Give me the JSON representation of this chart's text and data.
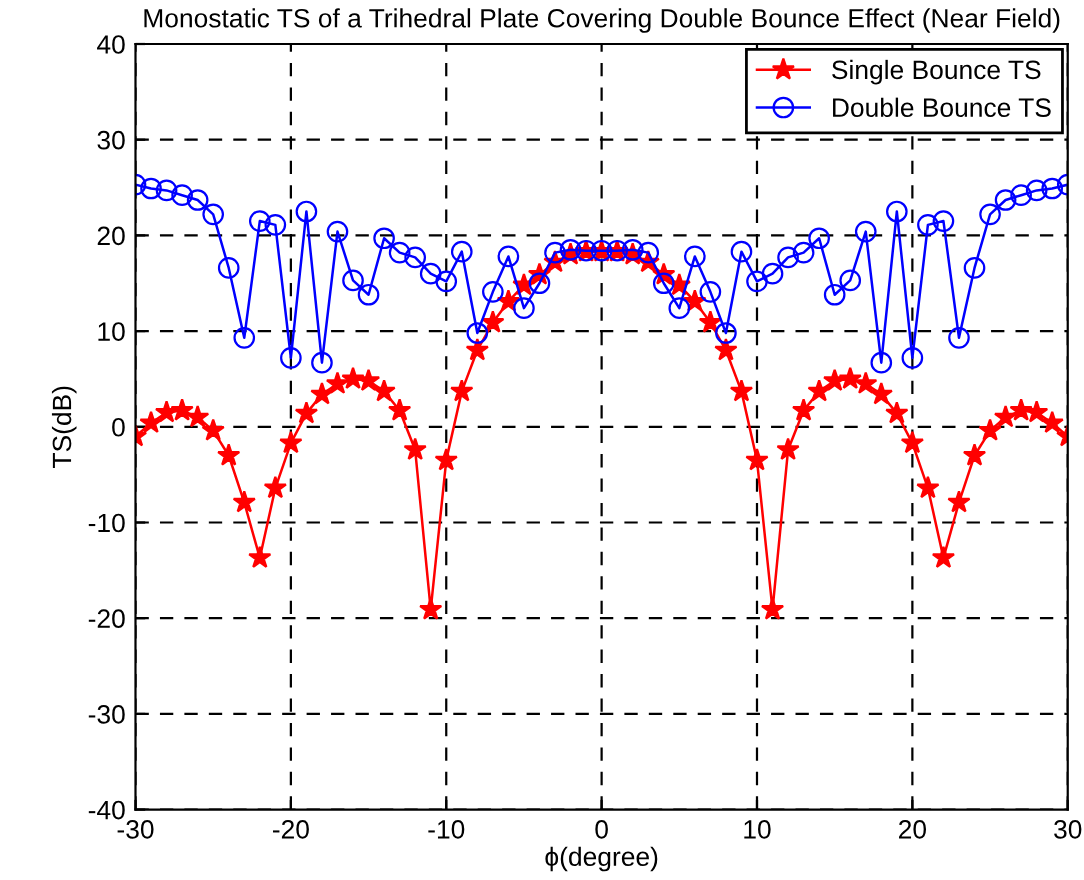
{
  "chart_data": {
    "type": "line",
    "title": "Monostatic TS of a Trihedral Plate Covering Double Bounce Effect (Near Field)",
    "xlabel": "ϕ(degree)",
    "ylabel": "TS(dB)",
    "x": [
      -30,
      -29,
      -28,
      -27,
      -26,
      -25,
      -24,
      -23,
      -22,
      -21,
      -20,
      -19,
      -18,
      -17,
      -16,
      -15,
      -14,
      -13,
      -12,
      -11,
      -10,
      -9,
      -8,
      -7,
      -6,
      -5,
      -4,
      -3,
      -2,
      -1,
      0,
      1,
      2,
      3,
      4,
      5,
      6,
      7,
      8,
      9,
      10,
      11,
      12,
      13,
      14,
      15,
      16,
      17,
      18,
      19,
      20,
      21,
      22,
      23,
      24,
      25,
      26,
      27,
      28,
      29,
      30
    ],
    "series": [
      {
        "name": "Single Bounce TS",
        "color": "#ff0000",
        "marker": "star",
        "values": [
          -1.0,
          0.4,
          1.5,
          1.7,
          1.0,
          -0.4,
          -3.0,
          -7.9,
          -13.7,
          -6.4,
          -1.7,
          1.4,
          3.4,
          4.5,
          5.0,
          4.8,
          3.7,
          1.7,
          -2.4,
          -19.1,
          -3.5,
          3.7,
          8.0,
          10.9,
          13.1,
          14.8,
          15.9,
          17.2,
          18.0,
          18.3,
          18.3,
          18.3,
          18.0,
          17.2,
          15.9,
          14.8,
          13.1,
          10.9,
          8.0,
          3.7,
          -3.5,
          -19.1,
          -2.4,
          1.7,
          3.7,
          4.8,
          5.0,
          4.5,
          3.4,
          1.4,
          -1.7,
          -6.4,
          -13.7,
          -7.9,
          -3.0,
          -0.4,
          1.0,
          1.7,
          1.5,
          0.4,
          -1.0
        ]
      },
      {
        "name": "Double Bounce TS",
        "color": "#0000ff",
        "marker": "circle",
        "values": [
          25.3,
          24.9,
          24.7,
          24.2,
          23.7,
          22.2,
          16.6,
          9.3,
          21.5,
          21.1,
          7.2,
          22.5,
          6.7,
          20.4,
          15.3,
          13.8,
          19.7,
          18.2,
          17.7,
          16.0,
          15.2,
          18.3,
          9.8,
          14.1,
          17.8,
          12.4,
          15.0,
          18.2,
          18.5,
          18.4,
          18.4,
          18.4,
          18.5,
          18.2,
          15.0,
          12.4,
          17.8,
          14.1,
          9.8,
          18.3,
          15.2,
          16.0,
          17.7,
          18.2,
          19.7,
          13.8,
          15.3,
          20.4,
          6.7,
          22.5,
          7.2,
          21.1,
          21.5,
          9.3,
          16.6,
          22.2,
          23.7,
          24.2,
          24.7,
          24.9,
          25.3
        ]
      }
    ],
    "xlim": [
      -30,
      30
    ],
    "xticks": [
      -30,
      -20,
      -10,
      0,
      10,
      20,
      30
    ],
    "ylim": [
      -40,
      40
    ],
    "yticks": [
      -40,
      -30,
      -20,
      -10,
      0,
      10,
      20,
      30,
      40
    ],
    "grid": true,
    "legend": "top right",
    "line_style": "solid"
  }
}
